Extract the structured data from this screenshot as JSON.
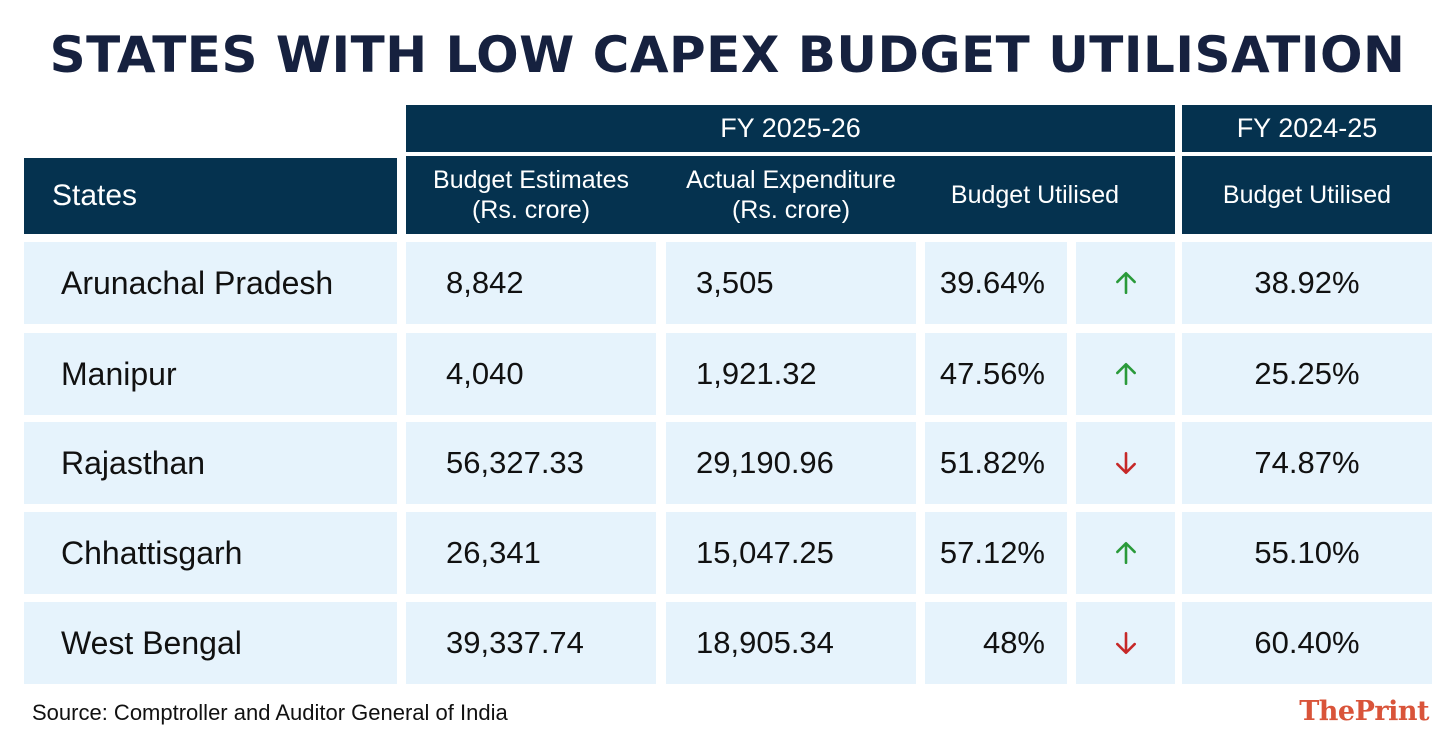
{
  "chart_data": {
    "type": "table",
    "title": "STATES WITH LOW CAPEX BUDGET UTILISATION",
    "group_headers": [
      "FY 2025-26",
      "FY 2024-25"
    ],
    "columns": {
      "states": "States",
      "budget_estimates": [
        "Budget Estimates",
        "(Rs. crore)"
      ],
      "actual_expenditure": [
        "Actual Expenditure",
        "(Rs. crore)"
      ],
      "budget_utilised_2526": "Budget Utilised",
      "budget_utilised_2425": "Budget Utilised"
    },
    "rows": [
      {
        "state": "Arunachal Pradesh",
        "budget_estimates": "8,842",
        "actual_expenditure": "3,505",
        "utilised_2526": "39.64%",
        "trend": "up",
        "utilised_2425": "38.92%"
      },
      {
        "state": "Manipur",
        "budget_estimates": "4,040",
        "actual_expenditure": "1,921.32",
        "utilised_2526": "47.56%",
        "trend": "up",
        "utilised_2425": "25.25%"
      },
      {
        "state": "Rajasthan",
        "budget_estimates": "56,327.33",
        "actual_expenditure": "29,190.96",
        "utilised_2526": "51.82%",
        "trend": "down",
        "utilised_2425": "74.87%"
      },
      {
        "state": "Chhattisgarh",
        "budget_estimates": "26,341",
        "actual_expenditure": "15,047.25",
        "utilised_2526": "57.12%",
        "trend": "up",
        "utilised_2425": "55.10%"
      },
      {
        "state": "West Bengal",
        "budget_estimates": "39,337.74",
        "actual_expenditure": "18,905.34",
        "utilised_2526": "48%",
        "trend": "down",
        "utilised_2425": "60.40%"
      }
    ],
    "colors": {
      "header": "#05324f",
      "cell": "#e6f3fc",
      "title": "#16213f",
      "up": "#2a9a3a",
      "down": "#c62828"
    }
  },
  "footer": {
    "source": "Source: Comptroller and Auditor General of India",
    "logo": "ThePrint"
  }
}
